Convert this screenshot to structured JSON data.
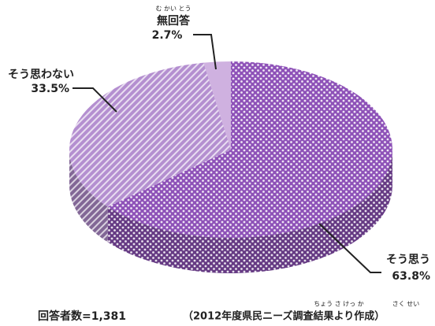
{
  "chart_data": {
    "type": "pie",
    "categories": [
      "そう思う",
      "そう思わない",
      "無回答"
    ],
    "values": [
      63.8,
      33.5,
      2.7
    ],
    "value_labels": [
      "63.8%",
      "33.5%",
      "2.7%"
    ],
    "colors": [
      "#8e52b8",
      "#b48fd0",
      "#cfb1e0"
    ],
    "patterns": [
      "dots",
      "stripes",
      "solid"
    ],
    "furigana": [
      "む かい とう",
      "ちょう さ けっ か",
      "さく せい"
    ],
    "respondents": "回答者数=1,381",
    "source": "（2012年度県民ニーズ調査結果より作成）"
  }
}
